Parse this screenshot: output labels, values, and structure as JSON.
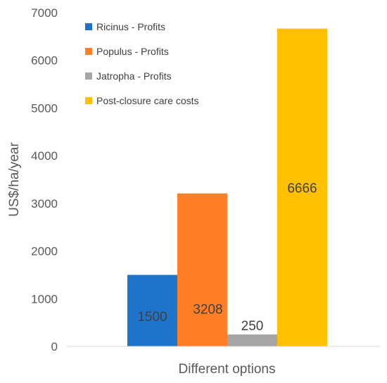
{
  "chart_data": {
    "type": "bar",
    "title": "",
    "xlabel": "Different options",
    "ylabel": "US$/ha/year",
    "ylim": [
      0,
      7000
    ],
    "yticks": [
      0,
      1000,
      2000,
      3000,
      4000,
      5000,
      6000,
      7000
    ],
    "grid": false,
    "legend_position": "top-left",
    "series": [
      {
        "name": "Ricinus - Profits",
        "value": 1500,
        "label": "1500",
        "color": "#1F74C9"
      },
      {
        "name": "Populus - Profits",
        "value": 3208,
        "label": "3208",
        "color": "#FF7F27"
      },
      {
        "name": "Jatropha - Profits",
        "value": 250,
        "label": "250",
        "color": "#A5A5A5"
      },
      {
        "name": "Post-closure care costs",
        "value": 6666,
        "label": "6666",
        "color": "#FFC000"
      }
    ]
  }
}
